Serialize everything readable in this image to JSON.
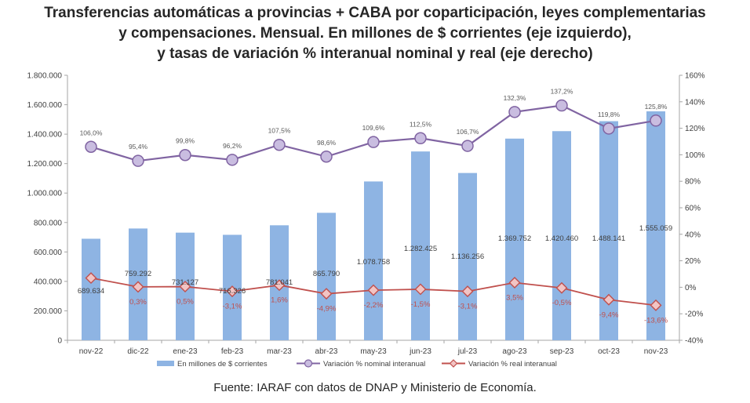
{
  "title": {
    "line1": "Transferencias automáticas a provincias + CABA por coparticipación, leyes complementarias",
    "line2": "y compensaciones. Mensual. En millones de $ corrientes (eje izquierdo),",
    "line3": "y tasas de variación % interanual nominal y real (eje derecho)"
  },
  "source": "Fuente: IARAF con datos de DNAP y Ministerio de Economía.",
  "colors": {
    "bar": "#8eb4e3",
    "nominal_line": "#8064a2",
    "nominal_marker": "#c9bde0",
    "real_line": "#c0504d",
    "real_marker": "#f2c4c4"
  },
  "chart_data": {
    "type": "bar",
    "categories": [
      "nov-22",
      "dic-22",
      "ene-23",
      "feb-23",
      "mar-23",
      "abr-23",
      "may-23",
      "jun-23",
      "jul-23",
      "ago-23",
      "sep-23",
      "oct-23",
      "nov-23"
    ],
    "ylim_left": [
      0,
      1800000
    ],
    "left_ticks": [
      "0",
      "200.000",
      "400.000",
      "600.000",
      "800.000",
      "1.000.000",
      "1.200.000",
      "1.400.000",
      "1.600.000",
      "1.800.000"
    ],
    "ylim_right": [
      -40,
      160
    ],
    "right_ticks": [
      "-40%",
      "-20%",
      "0%",
      "20%",
      "40%",
      "60%",
      "80%",
      "100%",
      "120%",
      "140%",
      "160%"
    ],
    "legend_position": "bottom",
    "series": [
      {
        "name": "En millones de $ corrientes",
        "type": "bar",
        "axis": "left",
        "values": [
          689634,
          759292,
          731127,
          716326,
          781041,
          865790,
          1078758,
          1282425,
          1136256,
          1369752,
          1420460,
          1488141,
          1555059
        ],
        "labels": [
          "689.634",
          "759.292",
          "731.127",
          "716.326",
          "781.041",
          "865.790",
          "1.078.758",
          "1.282.425",
          "1.136.256",
          "1.369.752",
          "1.420.460",
          "1.488.141",
          "1.555.059"
        ]
      },
      {
        "name": "Variación % nominal interanual",
        "type": "line",
        "axis": "right",
        "values": [
          106.0,
          95.4,
          99.8,
          96.2,
          107.5,
          98.6,
          109.6,
          112.5,
          106.7,
          132.3,
          137.2,
          119.8,
          125.8
        ],
        "labels": [
          "106,0%",
          "95,4%",
          "99,8%",
          "96,2%",
          "107,5%",
          "98,6%",
          "109,6%",
          "112,5%",
          "106,7%",
          "132,3%",
          "137,2%",
          "119,8%",
          "125,8%"
        ]
      },
      {
        "name": "Variación % real interanual",
        "type": "line",
        "axis": "right",
        "values": [
          7.0,
          0.3,
          0.5,
          -3.1,
          1.6,
          -4.9,
          -2.2,
          -1.5,
          -3.1,
          3.5,
          -0.5,
          -9.4,
          -13.6
        ],
        "labels": [
          "",
          "0,3%",
          "0,5%",
          "-3,1%",
          "1,6%",
          "-4,9%",
          "-2,2%",
          "-1,5%",
          "-3,1%",
          "3,5%",
          "-0,5%",
          "-9,4%",
          "-13,6%"
        ]
      }
    ]
  }
}
